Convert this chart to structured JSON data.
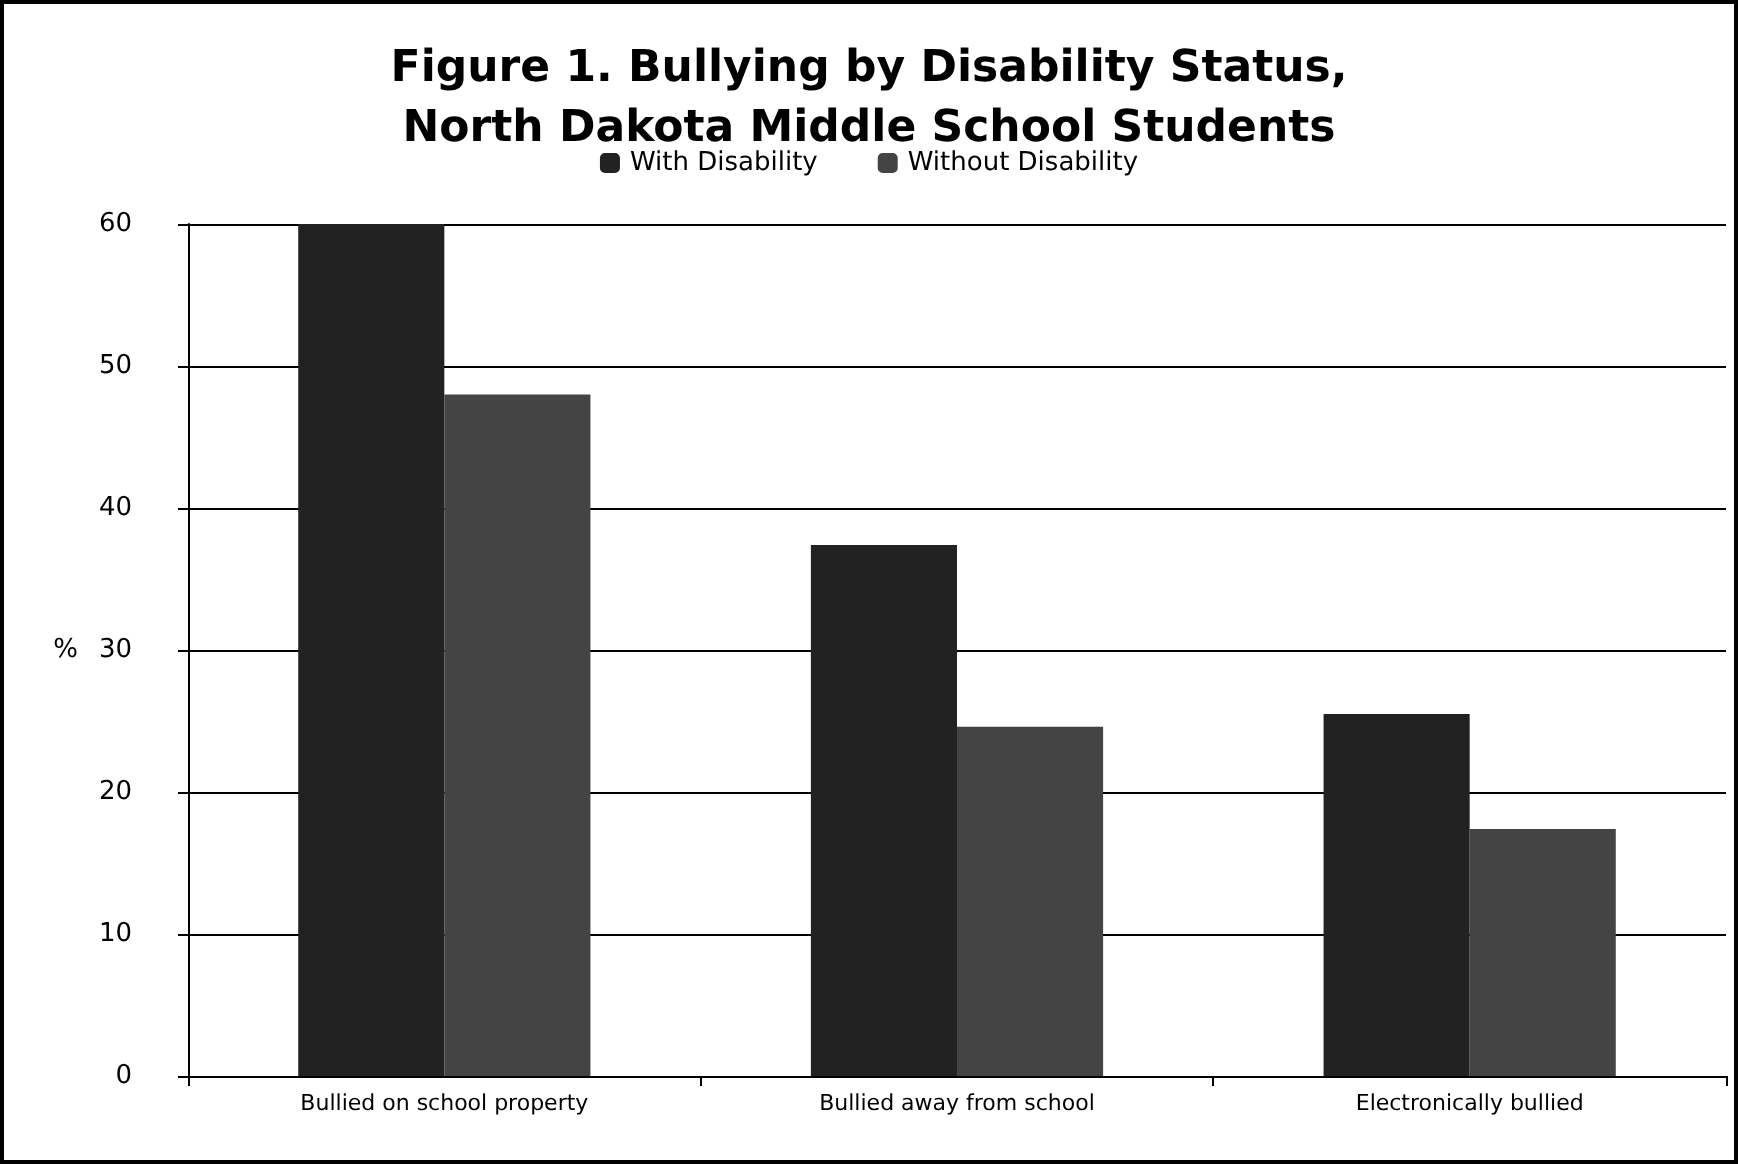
{
  "chart_data": {
    "type": "bar",
    "title": "Figure 1. Bullying by Disability Status,\nNorth Dakota Middle School Students",
    "ylabel": "%",
    "categories": [
      "Bullied on school property",
      "Bullied away from school",
      "Electronically bullied"
    ],
    "series": [
      {
        "name": "With Disability",
        "color": "#222222",
        "values": [
          60,
          37.4,
          25.5
        ]
      },
      {
        "name": "Without Disability",
        "color": "#444444",
        "values": [
          48,
          24.6,
          17.4
        ]
      }
    ],
    "ylim": [
      0,
      60
    ],
    "yticks": [
      0,
      10,
      20,
      30,
      40,
      50,
      60
    ],
    "grid": "y",
    "legend": "top"
  }
}
